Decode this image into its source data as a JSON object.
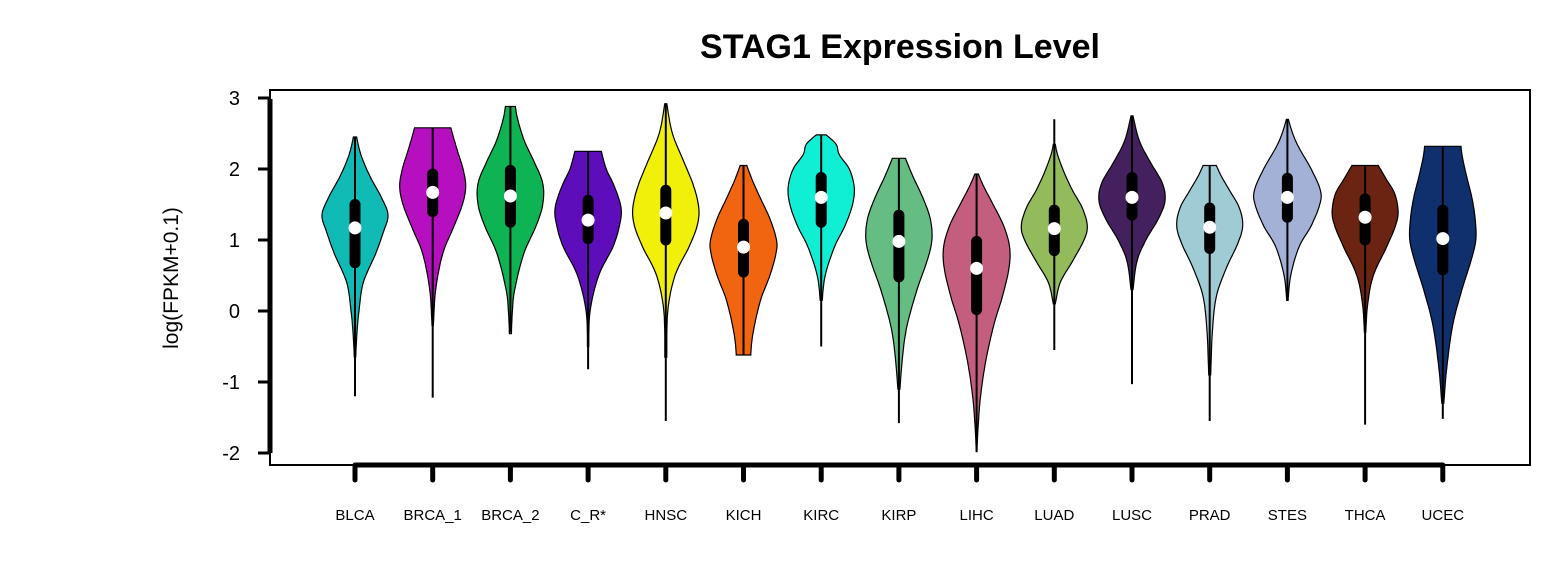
{
  "chart_data": {
    "type": "violin",
    "title": "STAG1 Expression Level",
    "xlabel": "",
    "ylabel": "log(FPKM+0.1)",
    "ylim": [
      -2.2,
      3.1
    ],
    "yticks": [
      3,
      2,
      1,
      0,
      -1,
      -2
    ],
    "grid": false,
    "legend": "none",
    "series": [
      {
        "name": "BLCA",
        "color": "#11BBB5",
        "median": 1.17,
        "q1": 0.68,
        "q3": 1.5,
        "wlo": -1.2,
        "whi": 2.45,
        "vmin": -0.65,
        "vmax": 2.45,
        "shape": [
          [
            -0.65,
            0.02
          ],
          [
            -0.3,
            0.06
          ],
          [
            0.0,
            0.12
          ],
          [
            0.4,
            0.25
          ],
          [
            0.8,
            0.62
          ],
          [
            1.1,
            0.85
          ],
          [
            1.35,
            1.0
          ],
          [
            1.6,
            0.8
          ],
          [
            1.9,
            0.45
          ],
          [
            2.2,
            0.18
          ],
          [
            2.45,
            0.05
          ]
        ]
      },
      {
        "name": "BRCA_1",
        "color": "#B60FBF",
        "median": 1.67,
        "q1": 1.4,
        "q3": 1.93,
        "wlo": -1.22,
        "whi": 2.58,
        "vmin": -0.2,
        "vmax": 2.58,
        "shape": [
          [
            -0.2,
            0.02
          ],
          [
            0.3,
            0.09
          ],
          [
            0.8,
            0.3
          ],
          [
            1.2,
            0.65
          ],
          [
            1.5,
            0.9
          ],
          [
            1.75,
            1.0
          ],
          [
            2.0,
            0.92
          ],
          [
            2.3,
            0.72
          ],
          [
            2.58,
            0.55
          ]
        ]
      },
      {
        "name": "BRCA_2",
        "color": "#0EB353",
        "median": 1.62,
        "q1": 1.25,
        "q3": 1.98,
        "wlo": -0.3,
        "whi": 2.88,
        "vmin": -0.32,
        "vmax": 2.88,
        "shape": [
          [
            -0.32,
            0.03
          ],
          [
            0.0,
            0.06
          ],
          [
            0.3,
            0.13
          ],
          [
            0.8,
            0.4
          ],
          [
            1.2,
            0.78
          ],
          [
            1.5,
            0.98
          ],
          [
            1.8,
            0.98
          ],
          [
            2.1,
            0.72
          ],
          [
            2.4,
            0.42
          ],
          [
            2.7,
            0.22
          ],
          [
            2.88,
            0.15
          ]
        ]
      },
      {
        "name": "C_R*",
        "color": "#5D0DBA",
        "median": 1.28,
        "q1": 1.02,
        "q3": 1.56,
        "wlo": -0.82,
        "whi": 2.25,
        "vmin": -0.5,
        "vmax": 2.25,
        "shape": [
          [
            -0.5,
            0.02
          ],
          [
            0.0,
            0.06
          ],
          [
            0.5,
            0.32
          ],
          [
            0.9,
            0.75
          ],
          [
            1.2,
            0.95
          ],
          [
            1.45,
            1.0
          ],
          [
            1.75,
            0.8
          ],
          [
            2.0,
            0.55
          ],
          [
            2.25,
            0.4
          ]
        ]
      },
      {
        "name": "HNSC",
        "color": "#F0F00A",
        "median": 1.38,
        "q1": 1.0,
        "q3": 1.7,
        "wlo": -1.55,
        "whi": 2.92,
        "vmin": -0.65,
        "vmax": 2.92,
        "shape": [
          [
            -0.65,
            0.03
          ],
          [
            0.0,
            0.06
          ],
          [
            0.5,
            0.28
          ],
          [
            0.9,
            0.7
          ],
          [
            1.2,
            0.95
          ],
          [
            1.45,
            1.0
          ],
          [
            1.75,
            0.85
          ],
          [
            2.1,
            0.55
          ],
          [
            2.5,
            0.2
          ],
          [
            2.92,
            0.03
          ]
        ]
      },
      {
        "name": "KICH",
        "color": "#F26510",
        "median": 0.9,
        "q1": 0.55,
        "q3": 1.22,
        "wlo": -0.62,
        "whi": 2.05,
        "vmin": -0.62,
        "vmax": 2.05,
        "shape": [
          [
            -0.62,
            0.22
          ],
          [
            -0.4,
            0.26
          ],
          [
            -0.1,
            0.38
          ],
          [
            0.2,
            0.55
          ],
          [
            0.5,
            0.8
          ],
          [
            0.8,
            0.98
          ],
          [
            1.0,
            1.0
          ],
          [
            1.3,
            0.8
          ],
          [
            1.6,
            0.5
          ],
          [
            1.85,
            0.26
          ],
          [
            2.05,
            0.1
          ]
        ]
      },
      {
        "name": "KIRC",
        "color": "#10EFD4",
        "median": 1.6,
        "q1": 1.25,
        "q3": 1.88,
        "wlo": -0.5,
        "whi": 2.48,
        "vmin": 0.15,
        "vmax": 2.48,
        "shape": [
          [
            0.15,
            0.03
          ],
          [
            0.5,
            0.12
          ],
          [
            0.9,
            0.4
          ],
          [
            1.2,
            0.72
          ],
          [
            1.5,
            0.95
          ],
          [
            1.75,
            1.0
          ],
          [
            2.0,
            0.85
          ],
          [
            2.2,
            0.55
          ],
          [
            2.35,
            0.45
          ],
          [
            2.48,
            0.15
          ]
        ]
      },
      {
        "name": "KIRP",
        "color": "#65BD84",
        "median": 0.98,
        "q1": 0.48,
        "q3": 1.35,
        "wlo": -1.58,
        "whi": 2.15,
        "vmin": -1.1,
        "vmax": 2.15,
        "shape": [
          [
            -1.1,
            0.03
          ],
          [
            -0.6,
            0.12
          ],
          [
            -0.2,
            0.25
          ],
          [
            0.3,
            0.55
          ],
          [
            0.7,
            0.85
          ],
          [
            1.0,
            1.0
          ],
          [
            1.3,
            0.95
          ],
          [
            1.6,
            0.72
          ],
          [
            1.9,
            0.42
          ],
          [
            2.15,
            0.2
          ]
        ]
      },
      {
        "name": "LIHC",
        "color": "#C35E7E",
        "median": 0.6,
        "q1": 0.02,
        "q3": 0.98,
        "wlo": -1.98,
        "whi": 1.93,
        "vmin": -1.98,
        "vmax": 1.93,
        "shape": [
          [
            -1.98,
            0.01
          ],
          [
            -1.6,
            0.05
          ],
          [
            -1.2,
            0.12
          ],
          [
            -0.7,
            0.28
          ],
          [
            -0.2,
            0.52
          ],
          [
            0.2,
            0.78
          ],
          [
            0.6,
            0.98
          ],
          [
            0.9,
            1.0
          ],
          [
            1.2,
            0.82
          ],
          [
            1.5,
            0.5
          ],
          [
            1.75,
            0.22
          ],
          [
            1.93,
            0.05
          ]
        ]
      },
      {
        "name": "LUAD",
        "color": "#93BB5C",
        "median": 1.16,
        "q1": 0.85,
        "q3": 1.42,
        "wlo": -0.55,
        "whi": 2.7,
        "vmin": 0.1,
        "vmax": 2.35,
        "shape": [
          [
            0.1,
            0.03
          ],
          [
            0.4,
            0.18
          ],
          [
            0.7,
            0.55
          ],
          [
            1.0,
            0.9
          ],
          [
            1.2,
            1.0
          ],
          [
            1.45,
            0.85
          ],
          [
            1.7,
            0.55
          ],
          [
            1.95,
            0.3
          ],
          [
            2.2,
            0.1
          ],
          [
            2.35,
            0.03
          ]
        ]
      },
      {
        "name": "LUSC",
        "color": "#45205E",
        "median": 1.6,
        "q1": 1.35,
        "q3": 1.88,
        "wlo": -1.03,
        "whi": 2.75,
        "vmin": 0.3,
        "vmax": 2.75,
        "shape": [
          [
            0.3,
            0.03
          ],
          [
            0.7,
            0.15
          ],
          [
            1.0,
            0.42
          ],
          [
            1.3,
            0.8
          ],
          [
            1.55,
            1.0
          ],
          [
            1.8,
            0.92
          ],
          [
            2.1,
            0.55
          ],
          [
            2.4,
            0.22
          ],
          [
            2.75,
            0.03
          ]
        ]
      },
      {
        "name": "PRAD",
        "color": "#9ECBD4",
        "median": 1.18,
        "q1": 0.88,
        "q3": 1.45,
        "wlo": -1.55,
        "whi": 2.05,
        "vmin": -0.9,
        "vmax": 2.05,
        "shape": [
          [
            -0.9,
            0.03
          ],
          [
            -0.3,
            0.08
          ],
          [
            0.2,
            0.2
          ],
          [
            0.6,
            0.5
          ],
          [
            0.95,
            0.85
          ],
          [
            1.2,
            1.0
          ],
          [
            1.45,
            0.9
          ],
          [
            1.7,
            0.6
          ],
          [
            1.9,
            0.35
          ],
          [
            2.05,
            0.2
          ]
        ]
      },
      {
        "name": "STES",
        "color": "#A3B1D6",
        "median": 1.6,
        "q1": 1.32,
        "q3": 1.87,
        "wlo": 0.15,
        "whi": 2.7,
        "vmin": 0.15,
        "vmax": 2.7,
        "shape": [
          [
            0.15,
            0.02
          ],
          [
            0.5,
            0.1
          ],
          [
            0.9,
            0.35
          ],
          [
            1.2,
            0.72
          ],
          [
            1.5,
            0.98
          ],
          [
            1.7,
            1.0
          ],
          [
            2.0,
            0.72
          ],
          [
            2.3,
            0.35
          ],
          [
            2.5,
            0.16
          ],
          [
            2.7,
            0.03
          ]
        ]
      },
      {
        "name": "THCA",
        "color": "#6B2312",
        "median": 1.32,
        "q1": 1.0,
        "q3": 1.58,
        "wlo": -1.6,
        "whi": 2.05,
        "vmin": -0.3,
        "vmax": 2.05,
        "shape": [
          [
            -0.3,
            0.02
          ],
          [
            0.1,
            0.08
          ],
          [
            0.5,
            0.25
          ],
          [
            0.9,
            0.65
          ],
          [
            1.2,
            0.92
          ],
          [
            1.4,
            1.0
          ],
          [
            1.65,
            0.9
          ],
          [
            1.85,
            0.65
          ],
          [
            2.05,
            0.4
          ]
        ]
      },
      {
        "name": "UCEC",
        "color": "#0F2F6D",
        "median": 1.02,
        "q1": 0.58,
        "q3": 1.42,
        "wlo": -1.52,
        "whi": 2.32,
        "vmin": -1.3,
        "vmax": 2.32,
        "shape": [
          [
            -1.3,
            0.03
          ],
          [
            -0.8,
            0.12
          ],
          [
            -0.2,
            0.3
          ],
          [
            0.3,
            0.58
          ],
          [
            0.7,
            0.85
          ],
          [
            1.0,
            1.0
          ],
          [
            1.3,
            0.98
          ],
          [
            1.6,
            0.88
          ],
          [
            1.9,
            0.72
          ],
          [
            2.15,
            0.6
          ],
          [
            2.32,
            0.55
          ]
        ]
      }
    ]
  }
}
